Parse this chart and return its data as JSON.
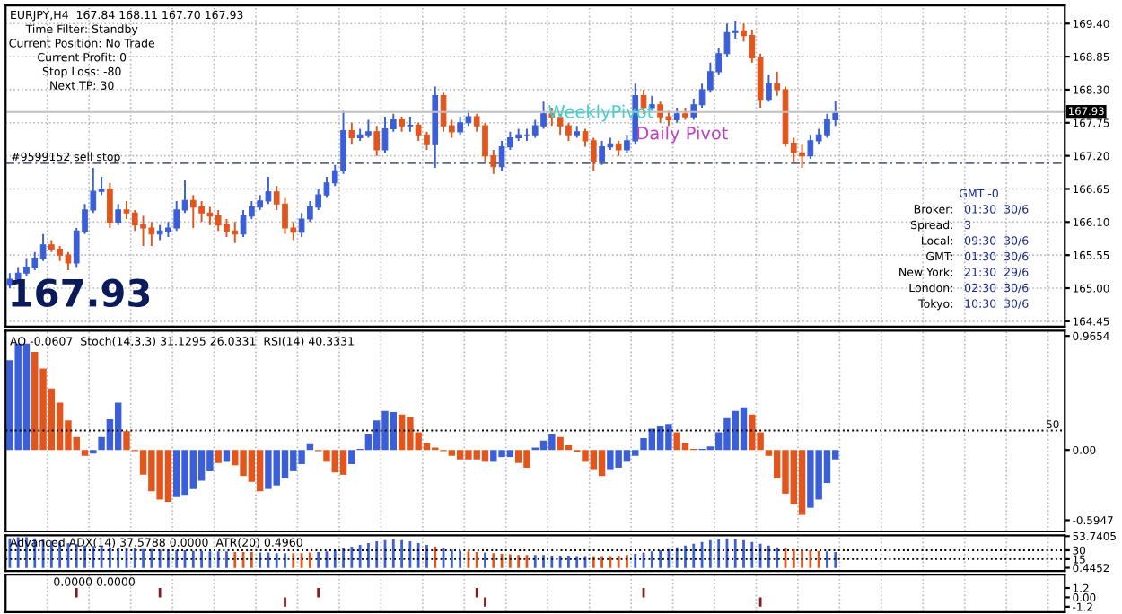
{
  "chart_data": [
    {
      "type": "candlestick",
      "categories": [
        null,
        null,
        null,
        null,
        null,
        null,
        null,
        null,
        null,
        null,
        null,
        null,
        null,
        null,
        null,
        null,
        null,
        null,
        null,
        null,
        null,
        null,
        null,
        null,
        null,
        null,
        null,
        null,
        null,
        null,
        null,
        null,
        null,
        null,
        null,
        null,
        null,
        null,
        null,
        null,
        null,
        null,
        null,
        null,
        null,
        null,
        null,
        null,
        null,
        null,
        null,
        null,
        null,
        null,
        null,
        null,
        null,
        null,
        null,
        null,
        null,
        null,
        null,
        null,
        null,
        null,
        null,
        null,
        null,
        null,
        null,
        null,
        null,
        null,
        null,
        null,
        null,
        null,
        null,
        null,
        null,
        null,
        null,
        null,
        null,
        null,
        null,
        null,
        null,
        null,
        null,
        null,
        null,
        null,
        null,
        null,
        null,
        null,
        null,
        null,
        null,
        null,
        null,
        null,
        null,
        null,
        null,
        null,
        null,
        null,
        null,
        null,
        null,
        null,
        null,
        null,
        null,
        null,
        null,
        null,
        null,
        null,
        null,
        null,
        null,
        null,
        null
      ],
      "ohlc": [
        [
          165.05,
          165.25,
          165.0,
          165.15
        ],
        [
          165.15,
          165.35,
          165.1,
          165.25
        ],
        [
          165.25,
          165.5,
          165.2,
          165.35
        ],
        [
          165.35,
          165.6,
          165.3,
          165.5
        ],
        [
          165.5,
          165.9,
          165.45,
          165.72
        ],
        [
          165.72,
          165.8,
          165.6,
          165.65
        ],
        [
          165.65,
          165.7,
          165.45,
          165.55
        ],
        [
          165.55,
          165.6,
          165.3,
          165.42
        ],
        [
          165.42,
          166.0,
          165.35,
          165.95
        ],
        [
          165.95,
          166.4,
          165.9,
          166.3
        ],
        [
          166.3,
          167.0,
          166.25,
          166.61
        ],
        [
          166.61,
          166.85,
          166.55,
          166.65
        ],
        [
          166.65,
          166.75,
          166.0,
          166.1
        ],
        [
          166.1,
          166.4,
          166.05,
          166.3
        ],
        [
          166.3,
          166.45,
          166.15,
          166.25
        ],
        [
          166.25,
          166.3,
          165.95,
          166.05
        ],
        [
          166.05,
          166.2,
          165.7,
          166.0
        ],
        [
          166.0,
          166.1,
          165.7,
          165.9
        ],
        [
          165.9,
          166.05,
          165.8,
          165.95
        ],
        [
          165.95,
          166.1,
          165.85,
          166.0
        ],
        [
          166.0,
          166.45,
          165.95,
          166.3
        ],
        [
          166.3,
          166.8,
          166.25,
          166.46
        ],
        [
          166.46,
          166.55,
          166.0,
          166.35
        ],
        [
          166.35,
          166.45,
          166.1,
          166.25
        ],
        [
          166.25,
          166.35,
          166.05,
          166.2
        ],
        [
          166.2,
          166.3,
          165.95,
          166.05
        ],
        [
          166.05,
          166.15,
          165.85,
          165.95
        ],
        [
          165.95,
          166.1,
          165.75,
          165.9
        ],
        [
          165.9,
          166.3,
          165.85,
          166.2
        ],
        [
          166.2,
          166.45,
          166.15,
          166.35
        ],
        [
          166.35,
          166.55,
          166.3,
          166.45
        ],
        [
          166.45,
          166.85,
          166.4,
          166.6
        ],
        [
          166.6,
          166.7,
          166.3,
          166.4
        ],
        [
          166.4,
          166.5,
          165.9,
          166.0
        ],
        [
          166.0,
          166.1,
          165.8,
          165.93
        ],
        [
          165.93,
          166.25,
          165.85,
          166.15
        ],
        [
          166.15,
          166.45,
          166.1,
          166.35
        ],
        [
          166.35,
          166.65,
          166.3,
          166.55
        ],
        [
          166.55,
          166.85,
          166.5,
          166.75
        ],
        [
          166.75,
          167.05,
          166.7,
          166.95
        ],
        [
          166.95,
          167.95,
          166.9,
          167.62
        ],
        [
          167.62,
          167.75,
          167.4,
          167.5
        ],
        [
          167.5,
          167.65,
          167.45,
          167.55
        ],
        [
          167.55,
          167.8,
          167.5,
          167.6
        ],
        [
          167.6,
          167.7,
          167.2,
          167.3
        ],
        [
          167.3,
          167.85,
          167.25,
          167.65
        ],
        [
          167.65,
          167.9,
          167.6,
          167.8
        ],
        [
          167.8,
          167.85,
          167.6,
          167.7
        ],
        [
          167.7,
          167.85,
          167.6,
          167.71
        ],
        [
          167.71,
          167.75,
          167.45,
          167.55
        ],
        [
          167.55,
          167.6,
          167.3,
          167.4
        ],
        [
          167.4,
          168.35,
          167.0,
          168.2
        ],
        [
          168.2,
          168.25,
          167.6,
          167.7
        ],
        [
          167.7,
          167.8,
          167.5,
          167.6
        ],
        [
          167.6,
          167.85,
          167.55,
          167.75
        ],
        [
          167.75,
          167.95,
          167.7,
          167.85
        ],
        [
          167.85,
          167.9,
          167.6,
          167.7
        ],
        [
          167.7,
          167.75,
          167.1,
          167.2
        ],
        [
          167.2,
          167.3,
          166.9,
          167.02
        ],
        [
          167.02,
          167.45,
          166.95,
          167.35
        ],
        [
          167.35,
          167.6,
          167.3,
          167.5
        ],
        [
          167.5,
          167.65,
          167.45,
          167.55
        ],
        [
          167.55,
          167.65,
          167.45,
          167.55
        ],
        [
          167.55,
          167.8,
          167.5,
          167.7
        ],
        [
          167.7,
          168.1,
          167.65,
          167.9
        ],
        [
          167.9,
          168.0,
          167.7,
          167.84
        ],
        [
          167.84,
          167.9,
          167.55,
          167.7
        ],
        [
          167.7,
          167.75,
          167.45,
          167.55
        ],
        [
          167.55,
          167.7,
          167.5,
          167.6
        ],
        [
          167.6,
          167.65,
          167.35,
          167.45
        ],
        [
          167.45,
          167.5,
          166.95,
          167.11
        ],
        [
          167.11,
          167.45,
          167.05,
          167.35
        ],
        [
          167.35,
          167.5,
          167.3,
          167.4
        ],
        [
          167.4,
          167.45,
          167.2,
          167.3
        ],
        [
          167.3,
          167.55,
          167.25,
          167.45
        ],
        [
          167.45,
          168.4,
          167.4,
          168.2
        ],
        [
          168.2,
          168.3,
          167.9,
          168.0
        ],
        [
          168.0,
          168.2,
          167.95,
          168.05
        ],
        [
          168.05,
          168.1,
          167.75,
          167.85
        ],
        [
          167.85,
          167.95,
          167.7,
          167.8
        ],
        [
          167.8,
          168.0,
          167.75,
          167.9
        ],
        [
          167.9,
          168.0,
          167.8,
          167.85
        ],
        [
          167.85,
          168.15,
          167.8,
          168.05
        ],
        [
          168.05,
          168.4,
          168.0,
          168.3
        ],
        [
          168.3,
          168.75,
          168.25,
          168.6
        ],
        [
          168.6,
          169.0,
          168.55,
          168.9
        ],
        [
          168.9,
          169.4,
          168.85,
          169.25
        ],
        [
          169.25,
          169.45,
          169.15,
          169.28
        ],
        [
          169.28,
          169.4,
          169.1,
          169.2
        ],
        [
          169.2,
          169.3,
          168.75,
          168.83
        ],
        [
          168.83,
          168.9,
          168.0,
          168.14
        ],
        [
          168.14,
          168.55,
          168.1,
          168.4
        ],
        [
          168.4,
          168.6,
          168.2,
          168.3
        ],
        [
          168.3,
          168.35,
          167.35,
          167.41
        ],
        [
          167.41,
          167.5,
          167.1,
          167.25
        ],
        [
          167.25,
          167.4,
          167.0,
          167.2
        ],
        [
          167.2,
          167.55,
          167.15,
          167.45
        ],
        [
          167.45,
          167.65,
          167.4,
          167.55
        ],
        [
          167.55,
          167.9,
          167.5,
          167.8
        ],
        [
          167.8,
          168.11,
          167.7,
          167.93
        ],
        null,
        null,
        null,
        null,
        null,
        null,
        null,
        null,
        null,
        null,
        null,
        null,
        null,
        null,
        null,
        null,
        null,
        null,
        null,
        null,
        null,
        null,
        null,
        null,
        null,
        null,
        null
      ],
      "colors": [
        "#3a5fd8",
        "#3a5fd8",
        "#3a5fd8",
        "#3a5fd8",
        "#3a5fd8",
        "#e2561d",
        "#e2561d",
        "#e2561d",
        "#3a5fd8",
        "#3a5fd8",
        "#3a5fd8",
        "#3a5fd8",
        "#e2561d",
        "#3a5fd8",
        "#e2561d",
        "#e2561d",
        "#e2561d",
        "#e2561d",
        "#3a5fd8",
        "#3a5fd8",
        "#3a5fd8",
        "#3a5fd8",
        "#e2561d",
        "#e2561d",
        "#e2561d",
        "#e2561d",
        "#e2561d",
        "#e2561d",
        "#3a5fd8",
        "#3a5fd8",
        "#3a5fd8",
        "#3a5fd8",
        "#e2561d",
        "#e2561d",
        "#e2561d",
        "#3a5fd8",
        "#3a5fd8",
        "#3a5fd8",
        "#3a5fd8",
        "#3a5fd8",
        "#3a5fd8",
        "#e2561d",
        "#3a5fd8",
        "#3a5fd8",
        "#e2561d",
        "#3a5fd8",
        "#3a5fd8",
        "#e2561d",
        "#3a5fd8",
        "#e2561d",
        "#e2561d",
        "#3a5fd8",
        "#e2561d",
        "#e2561d",
        "#3a5fd8",
        "#3a5fd8",
        "#e2561d",
        "#e2561d",
        "#e2561d",
        "#3a5fd8",
        "#3a5fd8",
        "#3a5fd8",
        "#3a5fd8",
        "#3a5fd8",
        "#3a5fd8",
        "#e2561d",
        "#e2561d",
        "#e2561d",
        "#3a5fd8",
        "#e2561d",
        "#e2561d",
        "#3a5fd8",
        "#3a5fd8",
        "#e2561d",
        "#3a5fd8",
        "#3a5fd8",
        "#e2561d",
        "#3a5fd8",
        "#e2561d",
        "#e2561d",
        "#3a5fd8",
        "#e2561d",
        "#3a5fd8",
        "#3a5fd8",
        "#3a5fd8",
        "#3a5fd8",
        "#3a5fd8",
        "#3a5fd8",
        "#e2561d",
        "#e2561d",
        "#e2561d",
        "#3a5fd8",
        "#e2561d",
        "#e2561d",
        "#e2561d",
        "#e2561d",
        "#3a5fd8",
        "#3a5fd8",
        "#3a5fd8",
        "#3a5fd8",
        null,
        null,
        null,
        null,
        null,
        null,
        null,
        null,
        null,
        null,
        null,
        null,
        null,
        null,
        null,
        null,
        null,
        null,
        null,
        null,
        null,
        null,
        null,
        null,
        null,
        null,
        null
      ],
      "ylim": [
        164.36,
        169.7
      ],
      "yticks": [
        {
          "value": 169.4,
          "label": "169.40"
        },
        {
          "value": 168.85,
          "label": "168.85"
        },
        {
          "value": 168.3,
          "label": "168.30"
        },
        {
          "value": 167.75,
          "label": "167.75"
        },
        {
          "value": 167.2,
          "label": "167.20"
        },
        {
          "value": 166.65,
          "label": "166.65"
        },
        {
          "value": 166.1,
          "label": "166.10"
        },
        {
          "value": 165.55,
          "label": "165.55"
        },
        {
          "value": 165.0,
          "label": "165.00"
        },
        {
          "value": 164.45,
          "label": "164.45"
        }
      ],
      "tick_labels": "y",
      "grid": true,
      "ref_lines": [
        {
          "axis": "y",
          "value": 167.08,
          "label": "#9599152 sell stop",
          "color": "#5a6a80",
          "line_style": "dashed"
        },
        {
          "axis": "y",
          "value": 167.93,
          "label": "167.93",
          "color": "#c0c0c0",
          "line_style": "solid"
        }
      ],
      "annotations": [
        "EURJPY,H4  167.84 168.11 167.70 167.93",
        "Time Filter: Standby",
        "Current Position: No Trade",
        "Current Profit: 0",
        "Stop Loss: -80",
        "Next TP: 30",
        "WeeklyPivot",
        "Daily Pivot",
        "167.93",
        "GMT -0",
        "Broker:",
        "01:30  30/6",
        "Spread:",
        "3",
        "Local:",
        "09:30  30/6",
        "GMT:",
        "01:30  30/6",
        "New York:",
        "21:30  29/6",
        "London:",
        "02:30  30/6",
        "Tokyo:",
        "10:30  30/6"
      ]
    },
    {
      "type": "bar",
      "categories": [
        null,
        null,
        null,
        null,
        null,
        null,
        null,
        null,
        null,
        null,
        null,
        null,
        null,
        null,
        null,
        null,
        null,
        null,
        null,
        null,
        null,
        null,
        null,
        null,
        null,
        null,
        null,
        null,
        null,
        null,
        null,
        null,
        null,
        null,
        null,
        null,
        null,
        null,
        null,
        null,
        null,
        null,
        null,
        null,
        null,
        null,
        null,
        null,
        null,
        null,
        null,
        null,
        null,
        null,
        null,
        null,
        null,
        null,
        null,
        null,
        null,
        null,
        null,
        null,
        null,
        null,
        null,
        null,
        null,
        null,
        null,
        null,
        null,
        null,
        null,
        null,
        null,
        null,
        null,
        null,
        null,
        null,
        null,
        null,
        null,
        null,
        null,
        null,
        null,
        null,
        null,
        null,
        null,
        null,
        null,
        null,
        null,
        null,
        null,
        null,
        null,
        null,
        null,
        null,
        null,
        null,
        null,
        null,
        null,
        null,
        null,
        null,
        null,
        null,
        null,
        null,
        null,
        null,
        null,
        null,
        null,
        null,
        null,
        null,
        null,
        null,
        null
      ],
      "values": [
        0.76,
        0.9,
        0.9,
        0.83,
        0.69,
        0.52,
        0.4,
        0.25,
        0.11,
        -0.05,
        -0.03,
        0.11,
        0.26,
        0.4,
        0.16,
        -0.01,
        -0.21,
        -0.35,
        -0.42,
        -0.44,
        -0.4,
        -0.38,
        -0.33,
        -0.26,
        -0.18,
        -0.11,
        -0.1,
        -0.13,
        -0.22,
        -0.27,
        -0.35,
        -0.33,
        -0.3,
        -0.24,
        -0.18,
        -0.12,
        0.05,
        -0.01,
        -0.1,
        -0.19,
        -0.21,
        -0.12,
        0.01,
        0.13,
        0.25,
        0.33,
        0.32,
        0.3,
        0.28,
        0.15,
        0.06,
        0.02,
        -0.01,
        -0.05,
        -0.08,
        -0.08,
        -0.08,
        -0.1,
        -0.1,
        -0.06,
        -0.06,
        -0.11,
        -0.15,
        0.02,
        0.08,
        0.13,
        0.11,
        0.04,
        -0.02,
        -0.1,
        -0.17,
        -0.22,
        -0.17,
        -0.15,
        -0.1,
        -0.05,
        0.1,
        0.18,
        0.2,
        0.22,
        0.15,
        0.06,
        0.01,
        0.01,
        0.03,
        0.15,
        0.27,
        0.33,
        0.36,
        0.3,
        0.15,
        -0.05,
        -0.24,
        -0.37,
        -0.46,
        -0.55,
        -0.49,
        -0.42,
        -0.28,
        -0.08,
        null,
        null,
        null,
        null,
        null,
        null,
        null,
        null,
        null,
        null,
        null,
        null,
        null,
        null,
        null,
        null,
        null,
        null,
        null,
        null,
        null,
        null,
        null,
        null,
        null,
        null,
        null
      ],
      "colors": [
        "#3a5fd8",
        "#3a5fd8",
        "#3a5fd8",
        "#e2561d",
        "#e2561d",
        "#e2561d",
        "#e2561d",
        "#e2561d",
        "#e2561d",
        "#e2561d",
        "#3a5fd8",
        "#3a5fd8",
        "#3a5fd8",
        "#3a5fd8",
        "#e2561d",
        "#e2561d",
        "#e2561d",
        "#e2561d",
        "#e2561d",
        "#e2561d",
        "#3a5fd8",
        "#3a5fd8",
        "#3a5fd8",
        "#3a5fd8",
        "#3a5fd8",
        "#e2561d",
        "#3a5fd8",
        "#e2561d",
        "#e2561d",
        "#e2561d",
        "#e2561d",
        "#3a5fd8",
        "#3a5fd8",
        "#3a5fd8",
        "#3a5fd8",
        "#3a5fd8",
        "#3a5fd8",
        "#e2561d",
        "#e2561d",
        "#e2561d",
        "#e2561d",
        "#3a5fd8",
        "#3a5fd8",
        "#3a5fd8",
        "#3a5fd8",
        "#3a5fd8",
        "#3a5fd8",
        "#e2561d",
        "#e2561d",
        "#e2561d",
        "#e2561d",
        "#e2561d",
        "#e2561d",
        "#e2561d",
        "#e2561d",
        "#e2561d",
        "#e2561d",
        "#e2561d",
        "#3a5fd8",
        "#3a5fd8",
        "#3a5fd8",
        "#e2561d",
        "#e2561d",
        "#3a5fd8",
        "#3a5fd8",
        "#3a5fd8",
        "#e2561d",
        "#e2561d",
        "#e2561d",
        "#e2561d",
        "#e2561d",
        "#e2561d",
        "#3a5fd8",
        "#3a5fd8",
        "#3a5fd8",
        "#3a5fd8",
        "#3a5fd8",
        "#3a5fd8",
        "#3a5fd8",
        "#3a5fd8",
        "#e2561d",
        "#e2561d",
        "#e2561d",
        "#3a5fd8",
        "#3a5fd8",
        "#3a5fd8",
        "#3a5fd8",
        "#3a5fd8",
        "#3a5fd8",
        "#e2561d",
        "#e2561d",
        "#e2561d",
        "#e2561d",
        "#e2561d",
        "#e2561d",
        "#e2561d",
        "#3a5fd8",
        "#3a5fd8",
        "#3a5fd8",
        "#3a5fd8",
        null,
        null,
        null,
        null,
        null,
        null,
        null,
        null,
        null,
        null,
        null,
        null,
        null,
        null,
        null,
        null,
        null,
        null,
        null,
        null,
        null,
        null,
        null,
        null,
        null,
        null,
        null
      ],
      "ylim": [
        -0.69,
        1.01
      ],
      "yticks": [
        0.9654,
        {
          "value": 0,
          "label": "0.00"
        },
        -0.5947
      ],
      "tick_labels": "y",
      "grid": "x",
      "ref_lines": [
        {
          "axis": "y",
          "value": 0.165,
          "color": "#000000",
          "line_style": "dotted"
        }
      ],
      "annotations": [
        "AO -0.0607  Stoch(14,3,3) 31.1295 26.0331  RSI(14) 40.3331",
        "50"
      ]
    },
    {
      "type": "bar",
      "categories": [
        null,
        null,
        null,
        null,
        null,
        null,
        null,
        null,
        null,
        null,
        null,
        null,
        null,
        null,
        null,
        null,
        null,
        null,
        null,
        null,
        null,
        null,
        null,
        null,
        null,
        null,
        null,
        null,
        null,
        null,
        null,
        null,
        null,
        null,
        null,
        null,
        null,
        null,
        null,
        null,
        null,
        null,
        null,
        null,
        null,
        null,
        null,
        null,
        null,
        null,
        null,
        null,
        null,
        null,
        null,
        null,
        null,
        null,
        null,
        null,
        null,
        null,
        null,
        null,
        null,
        null,
        null,
        null,
        null,
        null,
        null,
        null,
        null,
        null,
        null,
        null,
        null,
        null,
        null,
        null,
        null,
        null,
        null,
        null,
        null,
        null,
        null,
        null,
        null,
        null,
        null,
        null,
        null,
        null,
        null,
        null,
        null,
        null,
        null,
        null,
        null,
        null,
        null,
        null,
        null,
        null,
        null,
        null,
        null,
        null,
        null,
        null,
        null,
        null,
        null,
        null,
        null,
        null,
        null,
        null,
        null,
        null,
        null,
        null,
        null,
        null,
        null
      ],
      "values": [
        50,
        52,
        52,
        50,
        48,
        46,
        44,
        42,
        40,
        38,
        37,
        36,
        35,
        34,
        33,
        33,
        32,
        32,
        31,
        31,
        30,
        30,
        29,
        29,
        28,
        28,
        28,
        27,
        27,
        27,
        26,
        26,
        25,
        25,
        25,
        25,
        26,
        27,
        28,
        30,
        33,
        36,
        39,
        42,
        45,
        47,
        48,
        47,
        45,
        42,
        39,
        36,
        33,
        31,
        29,
        28,
        27,
        26,
        25,
        24,
        23,
        22,
        22,
        22,
        22,
        21,
        21,
        21,
        20,
        20,
        20,
        20,
        20,
        21,
        22,
        24,
        26,
        28,
        30,
        32,
        35,
        38,
        41,
        44,
        47,
        49,
        50,
        49,
        47,
        44,
        41,
        38,
        35,
        33,
        32,
        31,
        30,
        29,
        28,
        27,
        null,
        null,
        null,
        null,
        null,
        null,
        null,
        null,
        null,
        null,
        null,
        null,
        null,
        null,
        null,
        null,
        null,
        null,
        null,
        null,
        null,
        null,
        null,
        null,
        null,
        null,
        null
      ],
      "colors": [
        "#3a5fd8",
        "#3a5fd8",
        "#3a5fd8",
        "#3a5fd8",
        "#3a5fd8",
        "#3a5fd8",
        "#3a5fd8",
        "#3a5fd8",
        "#3a5fd8",
        "#3a5fd8",
        "#3a5fd8",
        "#3a5fd8",
        "#3a5fd8",
        "#3a5fd8",
        "#3a5fd8",
        "#3a5fd8",
        "#3a5fd8",
        "#3a5fd8",
        "#3a5fd8",
        "#3a5fd8",
        "#3a5fd8",
        "#3a5fd8",
        "#3a5fd8",
        "#3a5fd8",
        "#3a5fd8",
        "#3a5fd8",
        "#3a5fd8",
        "#e2561d",
        "#e2561d",
        "#e2561d",
        "#3a5fd8",
        "#3a5fd8",
        "#3a5fd8",
        "#3a5fd8",
        "#e2561d",
        "#e2561d",
        "#e2561d",
        "#3a5fd8",
        "#3a5fd8",
        "#3a5fd8",
        "#3a5fd8",
        "#3a5fd8",
        "#3a5fd8",
        "#3a5fd8",
        "#3a5fd8",
        "#3a5fd8",
        "#3a5fd8",
        "#3a5fd8",
        "#3a5fd8",
        "#3a5fd8",
        "#3a5fd8",
        "#e2561d",
        "#3a5fd8",
        "#3a5fd8",
        "#3a5fd8",
        "#e2561d",
        "#e2561d",
        "#3a5fd8",
        "#e2561d",
        "#e2561d",
        "#e2561d",
        "#e2561d",
        "#e2561d",
        "#3a5fd8",
        "#3a5fd8",
        "#3a5fd8",
        "#3a5fd8",
        "#3a5fd8",
        "#3a5fd8",
        "#3a5fd8",
        "#e2561d",
        "#e2561d",
        "#e2561d",
        "#e2561d",
        "#e2561d",
        "#3a5fd8",
        "#3a5fd8",
        "#3a5fd8",
        "#3a5fd8",
        "#3a5fd8",
        "#3a5fd8",
        "#3a5fd8",
        "#3a5fd8",
        "#3a5fd8",
        "#3a5fd8",
        "#3a5fd8",
        "#3a5fd8",
        "#3a5fd8",
        "#3a5fd8",
        "#3a5fd8",
        "#3a5fd8",
        "#3a5fd8",
        "#3a5fd8",
        "#e2561d",
        "#e2561d",
        "#e2561d",
        "#e2561d",
        "#e2561d",
        "#3a5fd8",
        "#3a5fd8",
        null,
        null,
        null,
        null,
        null,
        null,
        null,
        null,
        null,
        null,
        null,
        null,
        null,
        null,
        null,
        null,
        null,
        null,
        null,
        null,
        null,
        null,
        null,
        null,
        null,
        null,
        null
      ],
      "ylim": [
        -5,
        55
      ],
      "yticks": [
        53.7405,
        30,
        15,
        0.4452
      ],
      "tick_labels": "y",
      "grid": "x",
      "ref_lines": [
        {
          "axis": "y",
          "value": 30,
          "color": "#000000",
          "line_style": "dotted"
        },
        {
          "axis": "y",
          "value": 15,
          "color": "#000000",
          "line_style": "dotted"
        }
      ],
      "annotations": [
        "Advanced ADX(14) 37.5788 0.0000  ATR(20) 0.4960"
      ]
    },
    {
      "type": "bar",
      "categories": [
        null,
        null,
        null,
        null,
        null,
        null,
        null,
        null,
        null,
        null,
        null,
        null,
        null,
        null,
        null,
        null,
        null,
        null,
        null,
        null,
        null,
        null,
        null,
        null,
        null,
        null,
        null,
        null,
        null,
        null,
        null,
        null,
        null,
        null,
        null,
        null,
        null,
        null,
        null,
        null,
        null,
        null,
        null,
        null,
        null,
        null,
        null,
        null,
        null,
        null,
        null,
        null,
        null,
        null,
        null,
        null,
        null,
        null,
        null,
        null,
        null,
        null,
        null,
        null,
        null,
        null,
        null,
        null,
        null,
        null,
        null,
        null,
        null,
        null,
        null,
        null,
        null,
        null,
        null,
        null,
        null,
        null,
        null,
        null,
        null,
        null,
        null,
        null,
        null,
        null,
        null,
        null,
        null,
        null,
        null,
        null,
        null,
        null,
        null,
        null,
        null,
        null,
        null,
        null,
        null,
        null,
        null,
        null,
        null,
        null,
        null,
        null,
        null,
        null,
        null,
        null,
        null,
        null,
        null,
        null,
        null,
        null,
        null,
        null,
        null,
        null,
        null
      ],
      "values": [
        null,
        null,
        null,
        null,
        null,
        null,
        null,
        null,
        1.2,
        null,
        null,
        null,
        null,
        null,
        null,
        null,
        null,
        null,
        1.2,
        null,
        null,
        null,
        null,
        null,
        null,
        null,
        null,
        null,
        null,
        null,
        null,
        null,
        null,
        -1.2,
        null,
        null,
        null,
        1.2,
        null,
        null,
        null,
        null,
        null,
        null,
        null,
        null,
        null,
        null,
        null,
        null,
        null,
        null,
        null,
        null,
        null,
        null,
        1.2,
        -1.2,
        null,
        null,
        null,
        null,
        null,
        null,
        null,
        null,
        null,
        null,
        null,
        null,
        null,
        null,
        null,
        null,
        null,
        null,
        1.2,
        null,
        null,
        null,
        null,
        null,
        null,
        null,
        null,
        null,
        null,
        null,
        null,
        null,
        -1.2,
        null,
        null,
        null,
        null,
        null,
        null,
        null,
        null,
        null,
        null,
        null,
        null,
        null,
        null,
        null,
        null,
        null,
        null,
        null,
        null,
        null,
        null,
        null,
        null,
        null,
        null,
        null,
        null,
        null,
        null,
        null,
        null,
        null,
        null,
        null,
        null
      ],
      "color": "#8b1a1a",
      "ylim": [
        -1.9,
        2.9
      ],
      "yticks": [
        1.2,
        {
          "value": 0,
          "label": "0.00"
        },
        -1.2
      ],
      "tick_labels": "y",
      "grid": "x",
      "annotations": [
        "0.0000 0.0000"
      ]
    }
  ]
}
